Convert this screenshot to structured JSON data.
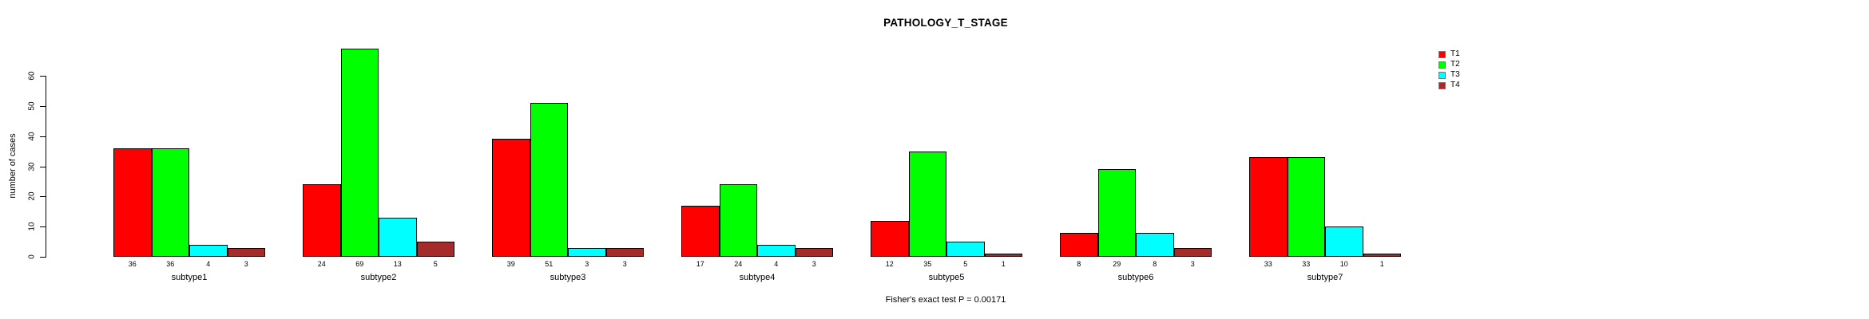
{
  "chart_data": {
    "type": "bar",
    "title": "PATHOLOGY_T_STAGE",
    "xlabel": "",
    "ylabel": "number of cases",
    "ylim": [
      0,
      60
    ],
    "yticks": [
      0,
      10,
      20,
      30,
      40,
      50,
      60
    ],
    "grid": false,
    "legend_position": "top-right",
    "bar_value_labels": true,
    "categories": [
      "subtype1",
      "subtype2",
      "subtype3",
      "subtype4",
      "subtype5",
      "subtype6",
      "subtype7"
    ],
    "series": [
      {
        "name": "T1",
        "color": "#FF0000",
        "values": [
          36,
          24,
          39,
          17,
          12,
          8,
          33
        ]
      },
      {
        "name": "T2",
        "color": "#00FF00",
        "values": [
          36,
          69,
          51,
          24,
          35,
          29,
          33
        ]
      },
      {
        "name": "T3",
        "color": "#00FFFF",
        "values": [
          4,
          13,
          3,
          4,
          5,
          8,
          10
        ]
      },
      {
        "name": "T4",
        "color": "#A52A2A",
        "values": [
          3,
          5,
          3,
          3,
          1,
          3,
          1
        ]
      }
    ],
    "annotation": "Fisher's exact test P = 0.00171"
  }
}
